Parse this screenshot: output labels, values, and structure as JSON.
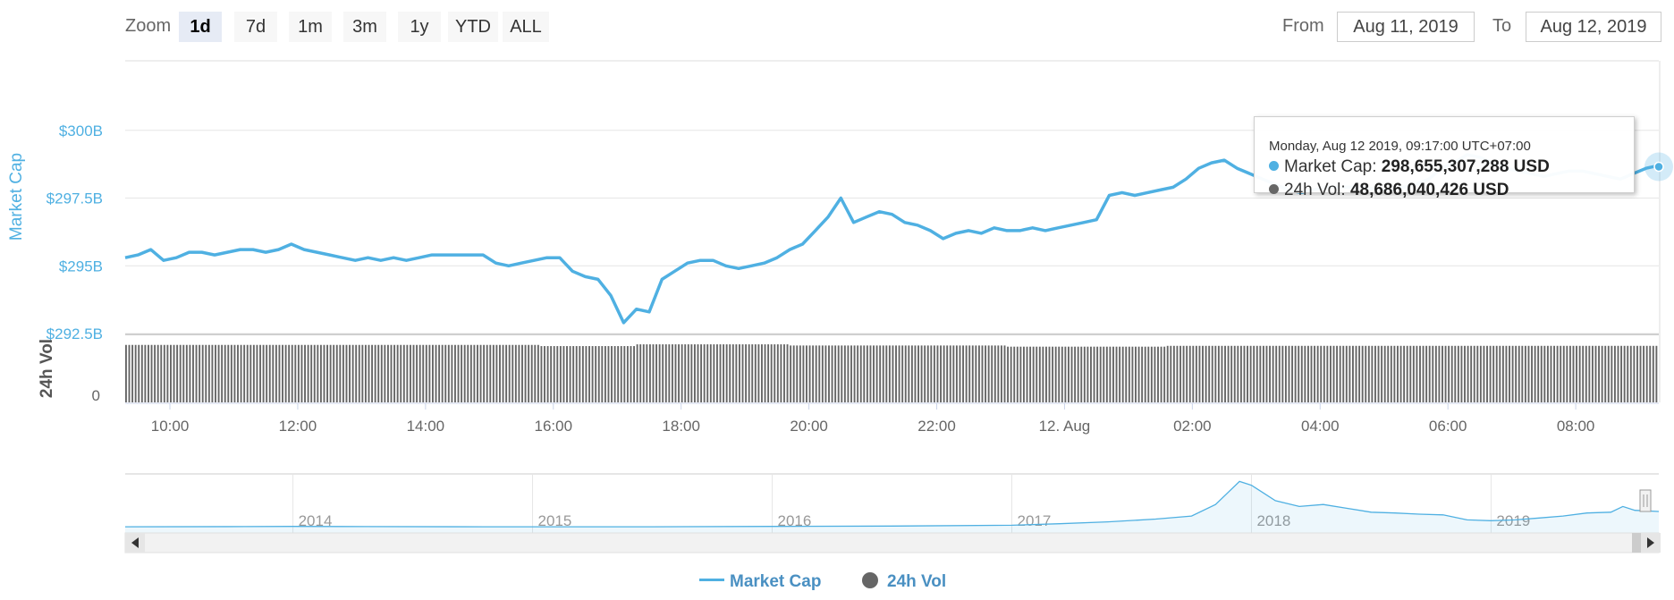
{
  "toolbar": {
    "zoom_label": "Zoom",
    "zoom_buttons": [
      "1d",
      "7d",
      "1m",
      "3m",
      "1y",
      "YTD",
      "ALL"
    ],
    "active_zoom": "1d",
    "from_label": "From",
    "from_value": "Aug 11, 2019",
    "to_label": "To",
    "to_value": "Aug 12, 2019"
  },
  "colors": {
    "market_cap": "#4fb0e2",
    "volume": "#666666",
    "grid": "#e6e6e6",
    "axis_text": "#666666",
    "cap_axis_text": "#4fb0e2"
  },
  "tooltip": {
    "date": "Monday, Aug 12 2019, 09:17:00 UTC+07:00",
    "cap_label": "Market Cap:",
    "cap_value": "298,655,307,288 USD",
    "vol_label": "24h Vol:",
    "vol_value": "48,686,040,426 USD"
  },
  "legend": {
    "market_cap": "Market Cap",
    "volume": "24h Vol"
  },
  "chart_data": {
    "type": "line",
    "x_unit": "hours since 2019-08-11 00:00 (UTC+07:00)",
    "x_range": [
      9.3,
      33.3
    ],
    "x_ticks": [
      {
        "x": 10,
        "label": "10:00"
      },
      {
        "x": 12,
        "label": "12:00"
      },
      {
        "x": 14,
        "label": "14:00"
      },
      {
        "x": 16,
        "label": "16:00"
      },
      {
        "x": 18,
        "label": "18:00"
      },
      {
        "x": 20,
        "label": "20:00"
      },
      {
        "x": 22,
        "label": "22:00"
      },
      {
        "x": 24,
        "label": "12. Aug"
      },
      {
        "x": 26,
        "label": "02:00"
      },
      {
        "x": 28,
        "label": "04:00"
      },
      {
        "x": 30,
        "label": "06:00"
      },
      {
        "x": 32,
        "label": "08:00"
      }
    ],
    "y_axis": {
      "label": "Market Cap",
      "unit": "USD billions",
      "range": [
        292.5,
        302.5
      ],
      "ticks": [
        {
          "v": 292.5,
          "label": "$292.5B"
        },
        {
          "v": 295,
          "label": "$295B"
        },
        {
          "v": 297.5,
          "label": "$297.5B"
        },
        {
          "v": 300,
          "label": "$300B"
        }
      ]
    },
    "y2_axis": {
      "label": "24h Vol",
      "unit": "USD billions",
      "range": [
        0,
        57
      ],
      "ticks": [
        {
          "v": 0,
          "label": "0"
        }
      ]
    },
    "series": [
      {
        "name": "Market Cap",
        "type": "line",
        "points": [
          [
            9.3,
            295.3
          ],
          [
            9.5,
            295.4
          ],
          [
            9.7,
            295.6
          ],
          [
            9.9,
            295.2
          ],
          [
            10.1,
            295.3
          ],
          [
            10.3,
            295.5
          ],
          [
            10.5,
            295.5
          ],
          [
            10.7,
            295.4
          ],
          [
            10.9,
            295.5
          ],
          [
            11.1,
            295.6
          ],
          [
            11.3,
            295.6
          ],
          [
            11.5,
            295.5
          ],
          [
            11.7,
            295.6
          ],
          [
            11.9,
            295.8
          ],
          [
            12.1,
            295.6
          ],
          [
            12.3,
            295.5
          ],
          [
            12.5,
            295.4
          ],
          [
            12.7,
            295.3
          ],
          [
            12.9,
            295.2
          ],
          [
            13.1,
            295.3
          ],
          [
            13.3,
            295.2
          ],
          [
            13.5,
            295.3
          ],
          [
            13.7,
            295.2
          ],
          [
            13.9,
            295.3
          ],
          [
            14.1,
            295.4
          ],
          [
            14.3,
            295.4
          ],
          [
            14.5,
            295.4
          ],
          [
            14.7,
            295.4
          ],
          [
            14.9,
            295.4
          ],
          [
            15.1,
            295.1
          ],
          [
            15.3,
            295.0
          ],
          [
            15.5,
            295.1
          ],
          [
            15.7,
            295.2
          ],
          [
            15.9,
            295.3
          ],
          [
            16.1,
            295.3
          ],
          [
            16.3,
            294.8
          ],
          [
            16.5,
            294.6
          ],
          [
            16.7,
            294.5
          ],
          [
            16.9,
            293.9
          ],
          [
            17.1,
            292.9
          ],
          [
            17.3,
            293.4
          ],
          [
            17.5,
            293.3
          ],
          [
            17.7,
            294.5
          ],
          [
            17.9,
            294.8
          ],
          [
            18.1,
            295.1
          ],
          [
            18.3,
            295.2
          ],
          [
            18.5,
            295.2
          ],
          [
            18.7,
            295.0
          ],
          [
            18.9,
            294.9
          ],
          [
            19.1,
            295.0
          ],
          [
            19.3,
            295.1
          ],
          [
            19.5,
            295.3
          ],
          [
            19.7,
            295.6
          ],
          [
            19.9,
            295.8
          ],
          [
            20.1,
            296.3
          ],
          [
            20.3,
            296.8
          ],
          [
            20.5,
            297.5
          ],
          [
            20.7,
            296.6
          ],
          [
            20.9,
            296.8
          ],
          [
            21.1,
            297.0
          ],
          [
            21.3,
            296.9
          ],
          [
            21.5,
            296.6
          ],
          [
            21.7,
            296.5
          ],
          [
            21.9,
            296.3
          ],
          [
            22.1,
            296.0
          ],
          [
            22.3,
            296.2
          ],
          [
            22.5,
            296.3
          ],
          [
            22.7,
            296.2
          ],
          [
            22.9,
            296.4
          ],
          [
            23.1,
            296.3
          ],
          [
            23.3,
            296.3
          ],
          [
            23.5,
            296.4
          ],
          [
            23.7,
            296.3
          ],
          [
            23.9,
            296.4
          ],
          [
            24.1,
            296.5
          ],
          [
            24.3,
            296.6
          ],
          [
            24.5,
            296.7
          ],
          [
            24.7,
            297.6
          ],
          [
            24.9,
            297.7
          ],
          [
            25.1,
            297.6
          ],
          [
            25.3,
            297.7
          ],
          [
            25.5,
            297.8
          ],
          [
            25.7,
            297.9
          ],
          [
            25.9,
            298.2
          ],
          [
            26.1,
            298.6
          ],
          [
            26.3,
            298.8
          ],
          [
            26.5,
            298.9
          ],
          [
            26.7,
            298.6
          ],
          [
            26.9,
            298.4
          ],
          [
            27.1,
            298.2
          ],
          [
            27.3,
            298.0
          ],
          [
            27.5,
            297.8
          ],
          [
            27.7,
            297.7
          ],
          [
            27.9,
            297.8
          ],
          [
            28.1,
            297.9
          ],
          [
            28.3,
            297.9
          ],
          [
            28.5,
            297.9
          ],
          [
            28.7,
            297.9
          ],
          [
            28.9,
            297.8
          ],
          [
            29.1,
            297.8
          ],
          [
            29.3,
            297.9
          ],
          [
            29.5,
            298.0
          ],
          [
            29.7,
            298.2
          ],
          [
            29.9,
            298.6
          ],
          [
            30.1,
            298.8
          ],
          [
            30.3,
            299.1
          ],
          [
            30.5,
            299.0
          ],
          [
            30.7,
            298.8
          ],
          [
            30.9,
            298.6
          ],
          [
            31.1,
            298.5
          ],
          [
            31.3,
            298.4
          ],
          [
            31.5,
            298.3
          ],
          [
            31.7,
            298.4
          ],
          [
            31.9,
            298.5
          ],
          [
            32.1,
            298.5
          ],
          [
            32.3,
            298.4
          ],
          [
            32.5,
            298.3
          ],
          [
            32.7,
            298.2
          ],
          [
            32.9,
            298.4
          ],
          [
            33.1,
            298.6
          ],
          [
            33.3,
            298.7
          ]
        ]
      },
      {
        "name": "24h Vol",
        "type": "column",
        "segments": [
          {
            "from": 9.3,
            "to": 15.8,
            "value": 49.5
          },
          {
            "from": 15.8,
            "to": 17.3,
            "value": 48.5
          },
          {
            "from": 17.3,
            "to": 19.7,
            "value": 50.0
          },
          {
            "from": 19.7,
            "to": 23.1,
            "value": 49.0
          },
          {
            "from": 23.1,
            "to": 25.6,
            "value": 48.0
          },
          {
            "from": 25.6,
            "to": 33.3,
            "value": 48.7
          }
        ]
      }
    ],
    "highlight": {
      "x": 33.3,
      "y": 298.655
    },
    "navigator": {
      "x_range": [
        2013.3,
        2019.7
      ],
      "ticks": [
        {
          "x": 2014,
          "label": "2014"
        },
        {
          "x": 2015,
          "label": "2015"
        },
        {
          "x": 2016,
          "label": "2016"
        },
        {
          "x": 2017,
          "label": "2017"
        },
        {
          "x": 2018,
          "label": "2018"
        },
        {
          "x": 2019,
          "label": "2019"
        }
      ],
      "points": [
        [
          2013.3,
          2
        ],
        [
          2013.8,
          2.5
        ],
        [
          2014.0,
          3
        ],
        [
          2014.3,
          2.5
        ],
        [
          2014.8,
          2
        ],
        [
          2015.0,
          2
        ],
        [
          2015.5,
          2
        ],
        [
          2016.0,
          3
        ],
        [
          2016.5,
          4
        ],
        [
          2017.0,
          6
        ],
        [
          2017.2,
          10
        ],
        [
          2017.4,
          15
        ],
        [
          2017.6,
          22
        ],
        [
          2017.75,
          30
        ],
        [
          2017.85,
          60
        ],
        [
          2017.9,
          90
        ],
        [
          2017.95,
          120
        ],
        [
          2018.0,
          110
        ],
        [
          2018.05,
          90
        ],
        [
          2018.1,
          70
        ],
        [
          2018.2,
          55
        ],
        [
          2018.3,
          60
        ],
        [
          2018.4,
          50
        ],
        [
          2018.5,
          40
        ],
        [
          2018.6,
          38
        ],
        [
          2018.7,
          35
        ],
        [
          2018.8,
          33
        ],
        [
          2018.9,
          20
        ],
        [
          2019.0,
          18
        ],
        [
          2019.1,
          20
        ],
        [
          2019.2,
          25
        ],
        [
          2019.3,
          30
        ],
        [
          2019.4,
          38
        ],
        [
          2019.5,
          40
        ],
        [
          2019.55,
          55
        ],
        [
          2019.6,
          45
        ],
        [
          2019.7,
          42
        ]
      ],
      "y_max": 135
    }
  }
}
